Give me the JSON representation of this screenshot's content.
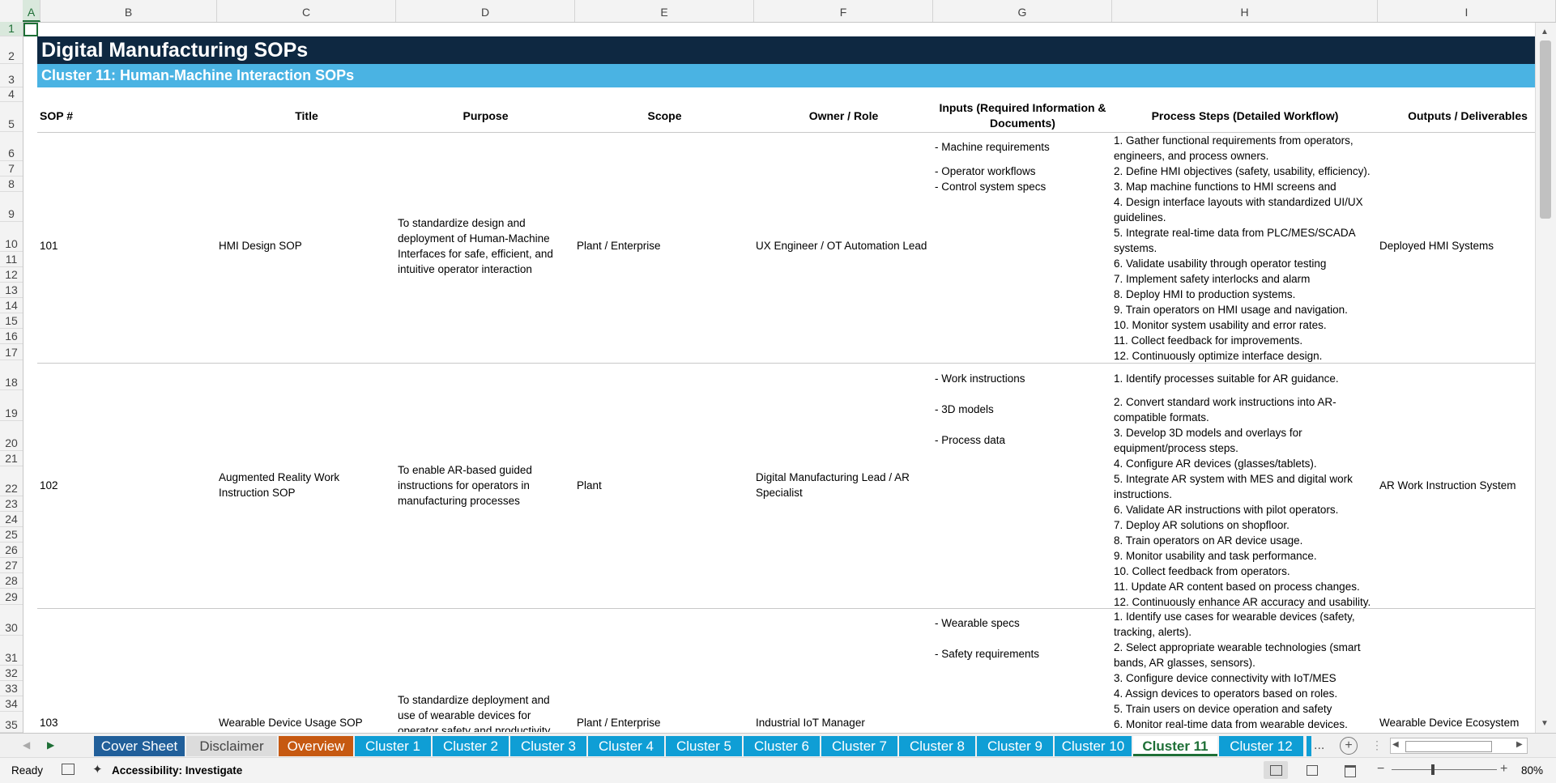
{
  "columns": [
    "A",
    "B",
    "C",
    "D",
    "E",
    "F",
    "G",
    "H",
    "I"
  ],
  "rows": [
    "1",
    "2",
    "3",
    "4",
    "5",
    "6",
    "7",
    "8",
    "9",
    "10",
    "11",
    "12",
    "13",
    "14",
    "15",
    "16",
    "17",
    "18",
    "19",
    "20",
    "21",
    "22",
    "23",
    "24",
    "25",
    "26",
    "27",
    "28",
    "29",
    "30",
    "31",
    "32",
    "33",
    "34",
    "35"
  ],
  "title": "Digital Manufacturing SOPs",
  "subtitle": "Cluster 11: Human-Machine Interaction SOPs",
  "headers": {
    "sop": "SOP #",
    "title": "Title",
    "purpose": "Purpose",
    "scope": "Scope",
    "owner": "Owner / Role",
    "inputs": "Inputs (Required Information & Documents)",
    "steps": "Process Steps (Detailed Workflow)",
    "outputs": "Outputs / Deliverables"
  },
  "records": [
    {
      "sop": "101",
      "title": "HMI Design SOP",
      "purpose": "To standardize design and deployment of Human-Machine Interfaces for safe, efficient, and intuitive operator interaction",
      "scope": "Plant / Enterprise",
      "owner": "UX Engineer / OT Automation Lead",
      "inputs": [
        "- Machine requirements",
        "- Operator workflows",
        "- Control system specs"
      ],
      "steps": [
        "1. Gather functional requirements from operators,",
        "engineers, and process owners.",
        "2. Define HMI objectives (safety, usability, efficiency).",
        "3. Map machine functions to HMI screens and",
        "4. Design interface layouts with standardized UI/UX",
        "guidelines.",
        "5. Integrate real-time data from PLC/MES/SCADA",
        "systems.",
        "6. Validate usability through operator testing",
        "7. Implement safety interlocks and alarm",
        "8. Deploy HMI to production systems.",
        "9. Train operators on HMI usage and navigation.",
        "10. Monitor system usability and error rates.",
        "11. Collect feedback for improvements.",
        "12. Continuously optimize interface design."
      ],
      "outputs": "Deployed HMI Systems"
    },
    {
      "sop": "102",
      "title": "Augmented Reality Work Instruction SOP",
      "purpose": "To enable AR-based guided instructions for operators in manufacturing processes",
      "scope": "Plant",
      "owner": "Digital Manufacturing Lead / AR Specialist",
      "inputs": [
        "- Work instructions",
        "- 3D models",
        "- Process data"
      ],
      "steps": [
        "1. Identify processes suitable for AR guidance.",
        "2. Convert standard work instructions into AR-",
        "compatible formats.",
        "3. Develop 3D models and overlays for",
        "equipment/process steps.",
        "4. Configure AR devices (glasses/tablets).",
        "5. Integrate AR system with MES and digital work",
        "instructions.",
        "6. Validate AR instructions with pilot operators.",
        "7. Deploy AR solutions on shopfloor.",
        "8. Train operators on AR device usage.",
        "9. Monitor usability and task performance.",
        "10. Collect feedback from operators.",
        "11. Update AR content based on process changes.",
        "12. Continuously enhance AR accuracy and usability."
      ],
      "outputs": "AR Work Instruction System"
    },
    {
      "sop": "103",
      "title": "Wearable Device Usage SOP",
      "purpose": "To standardize deployment and use of wearable devices for operator safety and productivity",
      "scope": "Plant / Enterprise",
      "owner": "Industrial IoT Manager",
      "inputs": [
        "- Wearable specs",
        "- Safety requirements"
      ],
      "steps": [
        "1. Identify use cases for wearable devices (safety,",
        "tracking, alerts).",
        "2. Select appropriate wearable technologies (smart",
        "bands, AR glasses, sensors).",
        "3. Configure device connectivity with IoT/MES",
        "4. Assign devices to operators based on roles.",
        "5. Train users on device operation and safety",
        "6. Monitor real-time data from wearable devices."
      ],
      "outputs": "Wearable Device Ecosystem"
    }
  ],
  "tabs": [
    {
      "label": "Cover Sheet",
      "style": "navy"
    },
    {
      "label": "Disclaimer",
      "style": "gray"
    },
    {
      "label": "Overview",
      "style": "orange"
    },
    {
      "label": "Cluster 1",
      "style": "blue"
    },
    {
      "label": "Cluster 2",
      "style": "blue"
    },
    {
      "label": "Cluster 3",
      "style": "blue"
    },
    {
      "label": "Cluster 4",
      "style": "blue"
    },
    {
      "label": "Cluster 5",
      "style": "blue"
    },
    {
      "label": "Cluster 6",
      "style": "blue"
    },
    {
      "label": "Cluster 7",
      "style": "blue"
    },
    {
      "label": "Cluster 8",
      "style": "blue"
    },
    {
      "label": "Cluster 9",
      "style": "blue"
    },
    {
      "label": "Cluster 10",
      "style": "blue"
    },
    {
      "label": "Cluster 11",
      "style": "active"
    },
    {
      "label": "Cluster 12",
      "style": "blue"
    }
  ],
  "tab_more": "...",
  "status": {
    "ready": "Ready",
    "accessibility": "Accessibility: Investigate",
    "zoom": "80%"
  },
  "colors": {
    "banner_dark": "#0e2841",
    "banner_light": "#4ab3e3",
    "tab_blue": "#0f9ed5",
    "accent_green": "#1e6f36"
  }
}
